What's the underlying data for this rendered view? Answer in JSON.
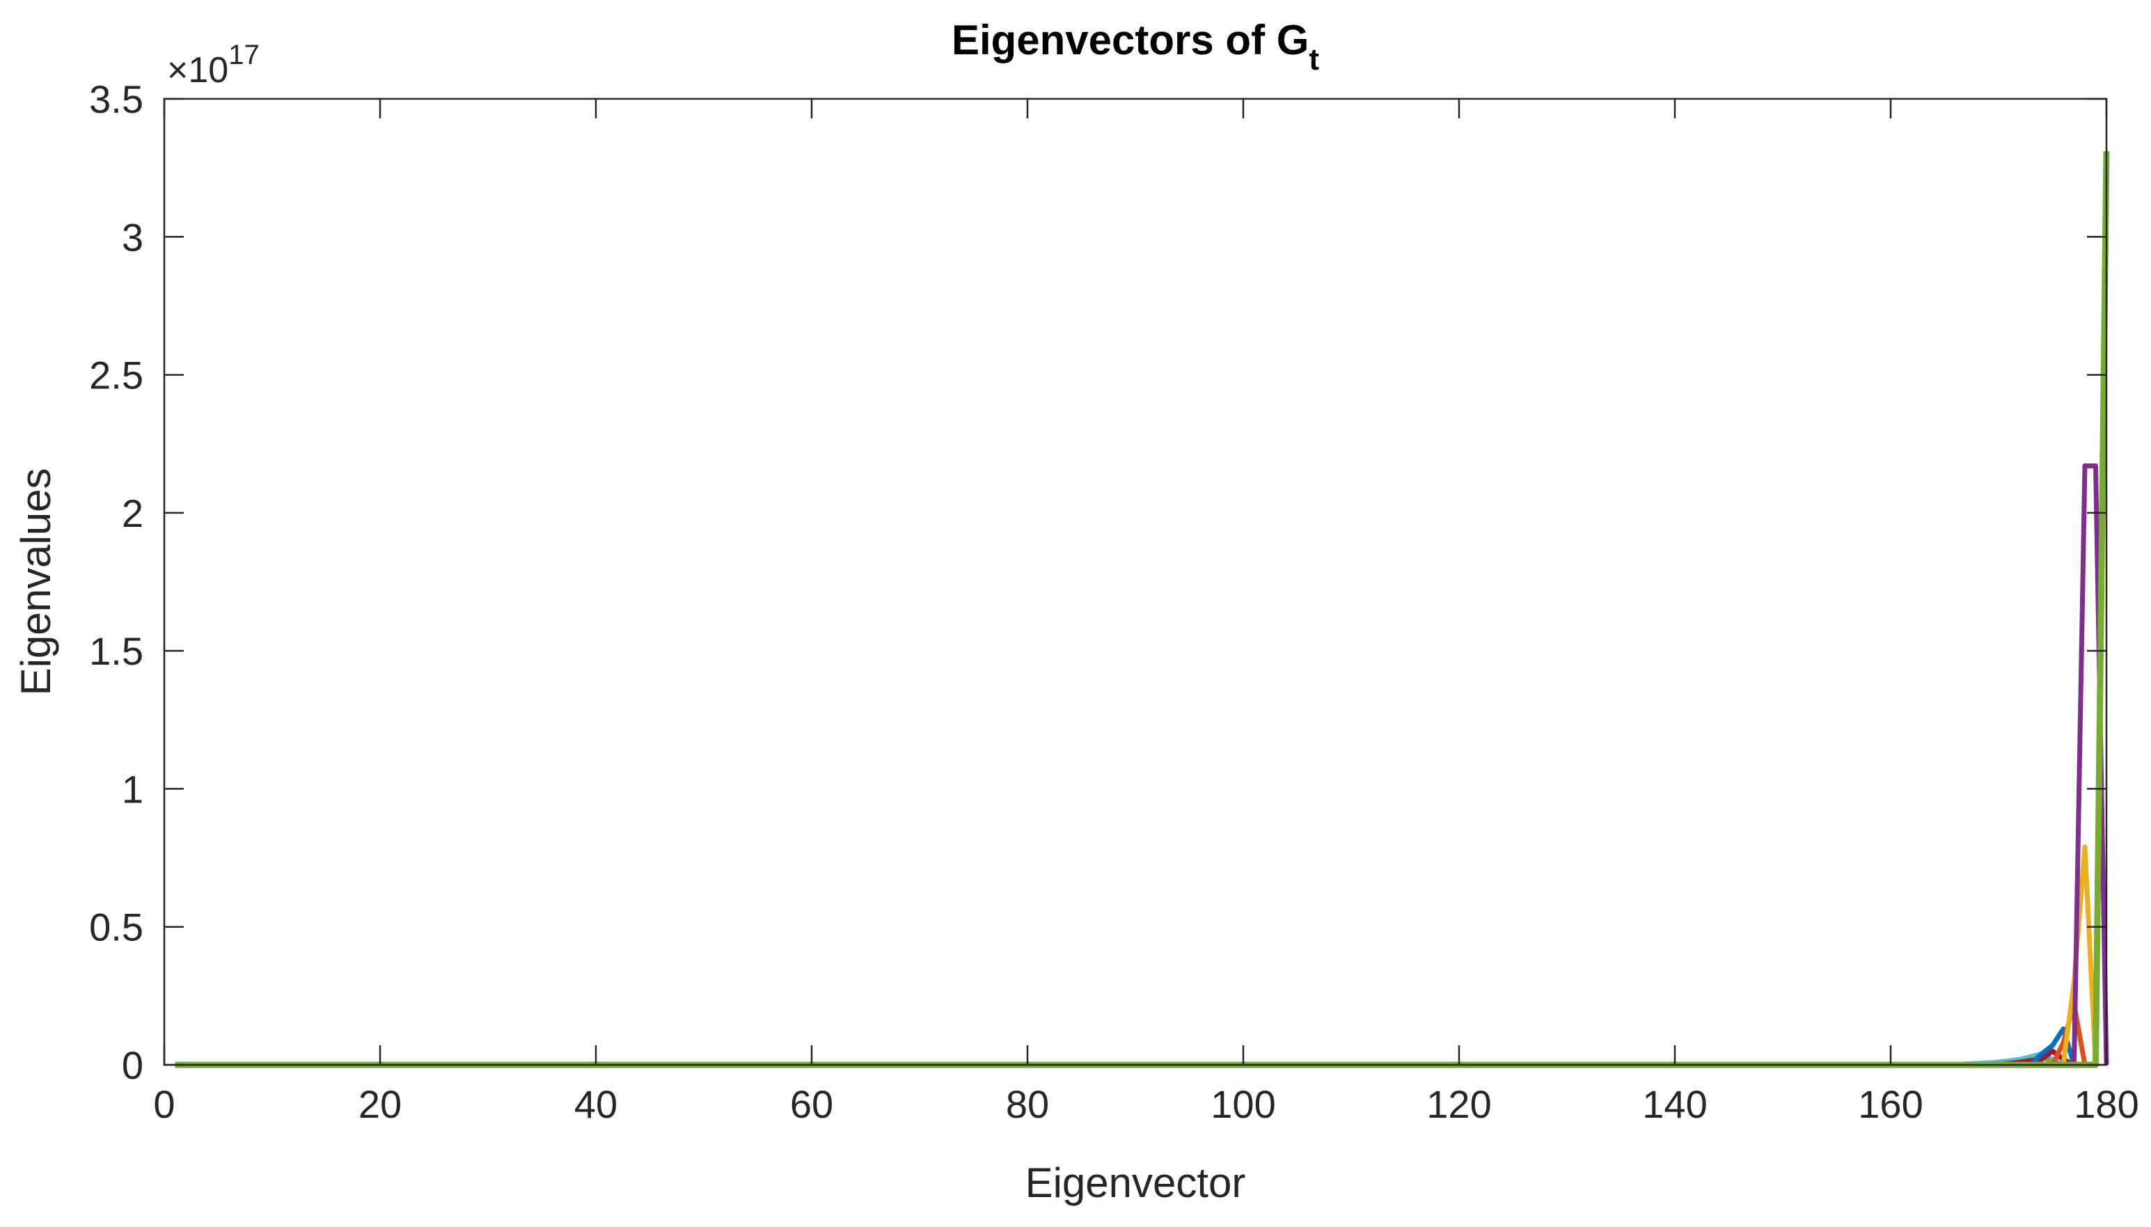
{
  "chart_data": {
    "type": "line",
    "title": "Eigenvectors of G",
    "title_subscript": "t",
    "xlabel": "Eigenvector",
    "ylabel": "Eigenvalues",
    "exponent_prefix": "×10",
    "exponent_power": "17",
    "xlim": [
      0,
      180
    ],
    "ylim": [
      0,
      3.5
    ],
    "y_scale": 1e+17,
    "x_ticks": [
      0,
      20,
      40,
      60,
      80,
      100,
      120,
      140,
      160,
      180
    ],
    "x_tick_labels": [
      "0",
      "20",
      "40",
      "60",
      "80",
      "100",
      "120",
      "140",
      "160",
      "180"
    ],
    "y_ticks": [
      0,
      0.5,
      1,
      1.5,
      2,
      2.5,
      3,
      3.5
    ],
    "y_tick_labels": [
      "0",
      "0.5",
      "1",
      "1.5",
      "2",
      "2.5",
      "3",
      "3.5"
    ],
    "grid": false,
    "series": [
      {
        "color": "#4DBEEE",
        "x": [
          1,
          165,
          168,
          170,
          172,
          174,
          175,
          176,
          177
        ],
        "y": [
          0,
          0,
          0.005,
          0.01,
          0.02,
          0.04,
          0.02,
          0,
          0
        ]
      },
      {
        "color": "#77AC30",
        "x": [
          1,
          168,
          170,
          172,
          174,
          175,
          176
        ],
        "y": [
          0,
          0,
          0.005,
          0.01,
          0.03,
          0.01,
          0
        ]
      },
      {
        "color": "#A2142F",
        "x": [
          1,
          170,
          172,
          174,
          175,
          176,
          177
        ],
        "y": [
          0,
          0,
          0.01,
          0.02,
          0.05,
          0.02,
          0
        ]
      },
      {
        "color": "#0072BD",
        "x": [
          1,
          173,
          174,
          175,
          176,
          177
        ],
        "y": [
          0,
          0,
          0.04,
          0.07,
          0.13,
          0
        ]
      },
      {
        "color": "#D95319",
        "x": [
          1,
          175,
          176,
          177,
          178
        ],
        "y": [
          0,
          0,
          0.08,
          0.22,
          0
        ]
      },
      {
        "color": "#EDB120",
        "x": [
          1,
          176,
          177,
          178,
          179
        ],
        "y": [
          0,
          0,
          0.3,
          0.79,
          0
        ]
      },
      {
        "color": "#7E2F8E",
        "x": [
          1,
          177,
          178,
          179,
          180
        ],
        "y": [
          0,
          0,
          2.17,
          2.17,
          0
        ]
      },
      {
        "color": "#77AC30",
        "x": [
          1,
          178,
          179,
          180
        ],
        "y": [
          0,
          0,
          0,
          3.31
        ]
      }
    ]
  }
}
